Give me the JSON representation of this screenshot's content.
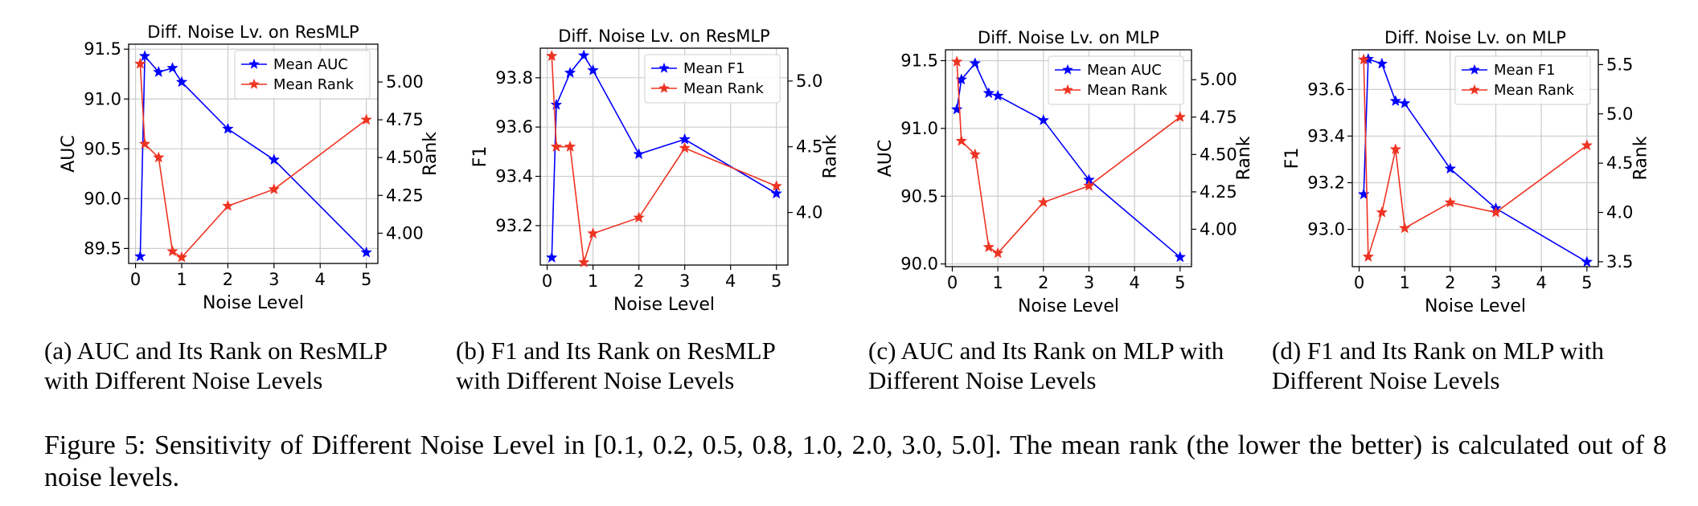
{
  "figure": {
    "caption_prefix": "Figure 5:",
    "caption_text": "Sensitivity of Different Noise Level in [0.1, 0.2, 0.5, 0.8, 1.0, 2.0, 3.0, 5.0]. The mean rank (the lower the better) is calculated out of 8 noise levels."
  },
  "subcaptions": [
    {
      "line1": "(a) AUC and Its Rank on ResMLP",
      "line2": "with Different Noise Levels"
    },
    {
      "line1": "(b) F1 and Its Rank on ResMLP",
      "line2": "with Different Noise Levels"
    },
    {
      "line1": "(c) AUC and Its Rank on MLP with",
      "line2": "Different Noise Levels"
    },
    {
      "line1": "(d) F1 and Its Rank on MLP with",
      "line2": "Different Noise Levels"
    }
  ],
  "colors": {
    "left_series": "#0000ff",
    "right_series": "#ee3322",
    "grid": "#cccccc"
  },
  "chart_data": [
    {
      "type": "line",
      "title": "Diff. Noise Lv. on ResMLP",
      "xlabel": "Noise Level",
      "ylabel": "AUC",
      "ylabel_right": "Rank",
      "x": [
        0.1,
        0.2,
        0.5,
        0.8,
        1.0,
        2.0,
        3.0,
        5.0
      ],
      "xlim": [
        -0.15,
        5.25
      ],
      "xticks": [
        0,
        1,
        2,
        3,
        4,
        5
      ],
      "ylim": [
        89.35,
        91.55
      ],
      "yticks": [
        89.5,
        90.0,
        90.5,
        91.0,
        91.5
      ],
      "ytick_labels": [
        "89.5",
        "90.0",
        "90.5",
        "91.0",
        "91.5"
      ],
      "ylim_right": [
        3.8,
        5.25
      ],
      "yticks_right": [
        4.0,
        4.25,
        4.5,
        4.75,
        5.0
      ],
      "ytick_right_labels": [
        "4.00",
        "4.25",
        "4.50",
        "4.75",
        "5.00"
      ],
      "legend_position": "top-right",
      "series": [
        {
          "name": "Mean AUC",
          "axis": "left",
          "values": [
            89.42,
            91.43,
            91.27,
            91.31,
            91.17,
            90.7,
            90.39,
            89.46
          ]
        },
        {
          "name": "Mean Rank",
          "axis": "right",
          "values": [
            5.12,
            4.59,
            4.5,
            3.88,
            3.84,
            4.18,
            4.29,
            4.75
          ]
        }
      ]
    },
    {
      "type": "line",
      "title": "Diff. Noise Lv. on ResMLP",
      "xlabel": "Noise Level",
      "ylabel": "F1",
      "ylabel_right": "Rank",
      "x": [
        0.1,
        0.2,
        0.5,
        0.8,
        1.0,
        2.0,
        3.0,
        5.0
      ],
      "xlim": [
        -0.15,
        5.25
      ],
      "xticks": [
        0,
        1,
        2,
        3,
        4,
        5
      ],
      "ylim": [
        93.04,
        93.92
      ],
      "yticks": [
        93.2,
        93.4,
        93.6,
        93.8
      ],
      "ytick_labels": [
        "93.2",
        "93.4",
        "93.6",
        "93.8"
      ],
      "ylim_right": [
        3.6,
        5.25
      ],
      "yticks_right": [
        4.0,
        4.5,
        5.0
      ],
      "ytick_right_labels": [
        "4.0",
        "4.5",
        "5.0"
      ],
      "legend_position": "top-right",
      "series": [
        {
          "name": "Mean F1",
          "axis": "left",
          "values": [
            93.07,
            93.69,
            93.82,
            93.89,
            93.83,
            93.49,
            93.55,
            93.33
          ]
        },
        {
          "name": "Mean Rank",
          "axis": "right",
          "values": [
            5.19,
            4.5,
            4.5,
            3.62,
            3.84,
            3.96,
            4.49,
            4.2
          ]
        }
      ]
    },
    {
      "type": "line",
      "title": "Diff. Noise Lv. on MLP",
      "xlabel": "Noise Level",
      "ylabel": "AUC",
      "ylabel_right": "Rank",
      "x": [
        0.1,
        0.2,
        0.5,
        0.8,
        1.0,
        2.0,
        3.0,
        5.0
      ],
      "xlim": [
        -0.15,
        5.25
      ],
      "xticks": [
        0,
        1,
        2,
        3,
        4,
        5
      ],
      "ylim": [
        89.98,
        91.58
      ],
      "yticks": [
        90.0,
        90.5,
        91.0,
        91.5
      ],
      "ytick_labels": [
        "90.0",
        "90.5",
        "91.0",
        "91.5"
      ],
      "ylim_right": [
        3.75,
        5.2
      ],
      "yticks_right": [
        4.0,
        4.25,
        4.5,
        4.75,
        5.0
      ],
      "ytick_right_labels": [
        "4.00",
        "4.25",
        "4.50",
        "4.75",
        "5.00"
      ],
      "legend_position": "top-right",
      "series": [
        {
          "name": "Mean AUC",
          "axis": "left",
          "values": [
            91.14,
            91.36,
            91.48,
            91.26,
            91.24,
            91.06,
            90.62,
            90.05
          ]
        },
        {
          "name": "Mean Rank",
          "axis": "right",
          "values": [
            5.12,
            4.59,
            4.5,
            3.88,
            3.84,
            4.18,
            4.29,
            4.75
          ]
        }
      ]
    },
    {
      "type": "line",
      "title": "Diff. Noise Lv. on MLP",
      "xlabel": "Noise Level",
      "ylabel": "F1",
      "ylabel_right": "Rank",
      "x": [
        0.1,
        0.2,
        0.5,
        0.8,
        1.0,
        2.0,
        3.0,
        5.0
      ],
      "xlim": [
        -0.15,
        5.25
      ],
      "xticks": [
        0,
        1,
        2,
        3,
        4,
        5
      ],
      "ylim": [
        92.84,
        93.77
      ],
      "yticks": [
        93.0,
        93.2,
        93.4,
        93.6
      ],
      "ytick_labels": [
        "93.0",
        "93.2",
        "93.4",
        "93.6"
      ],
      "ylim_right": [
        3.45,
        5.65
      ],
      "yticks_right": [
        3.5,
        4.0,
        4.5,
        5.0,
        5.5
      ],
      "ytick_right_labels": [
        "3.5",
        "4.0",
        "4.5",
        "5.0",
        "5.5"
      ],
      "legend_position": "top-right",
      "series": [
        {
          "name": "Mean F1",
          "axis": "left",
          "values": [
            93.15,
            93.73,
            93.71,
            93.55,
            93.54,
            93.26,
            93.09,
            92.86
          ]
        },
        {
          "name": "Mean Rank",
          "axis": "right",
          "values": [
            5.55,
            3.55,
            4.0,
            4.64,
            3.84,
            4.1,
            4.0,
            4.68
          ]
        }
      ]
    }
  ]
}
